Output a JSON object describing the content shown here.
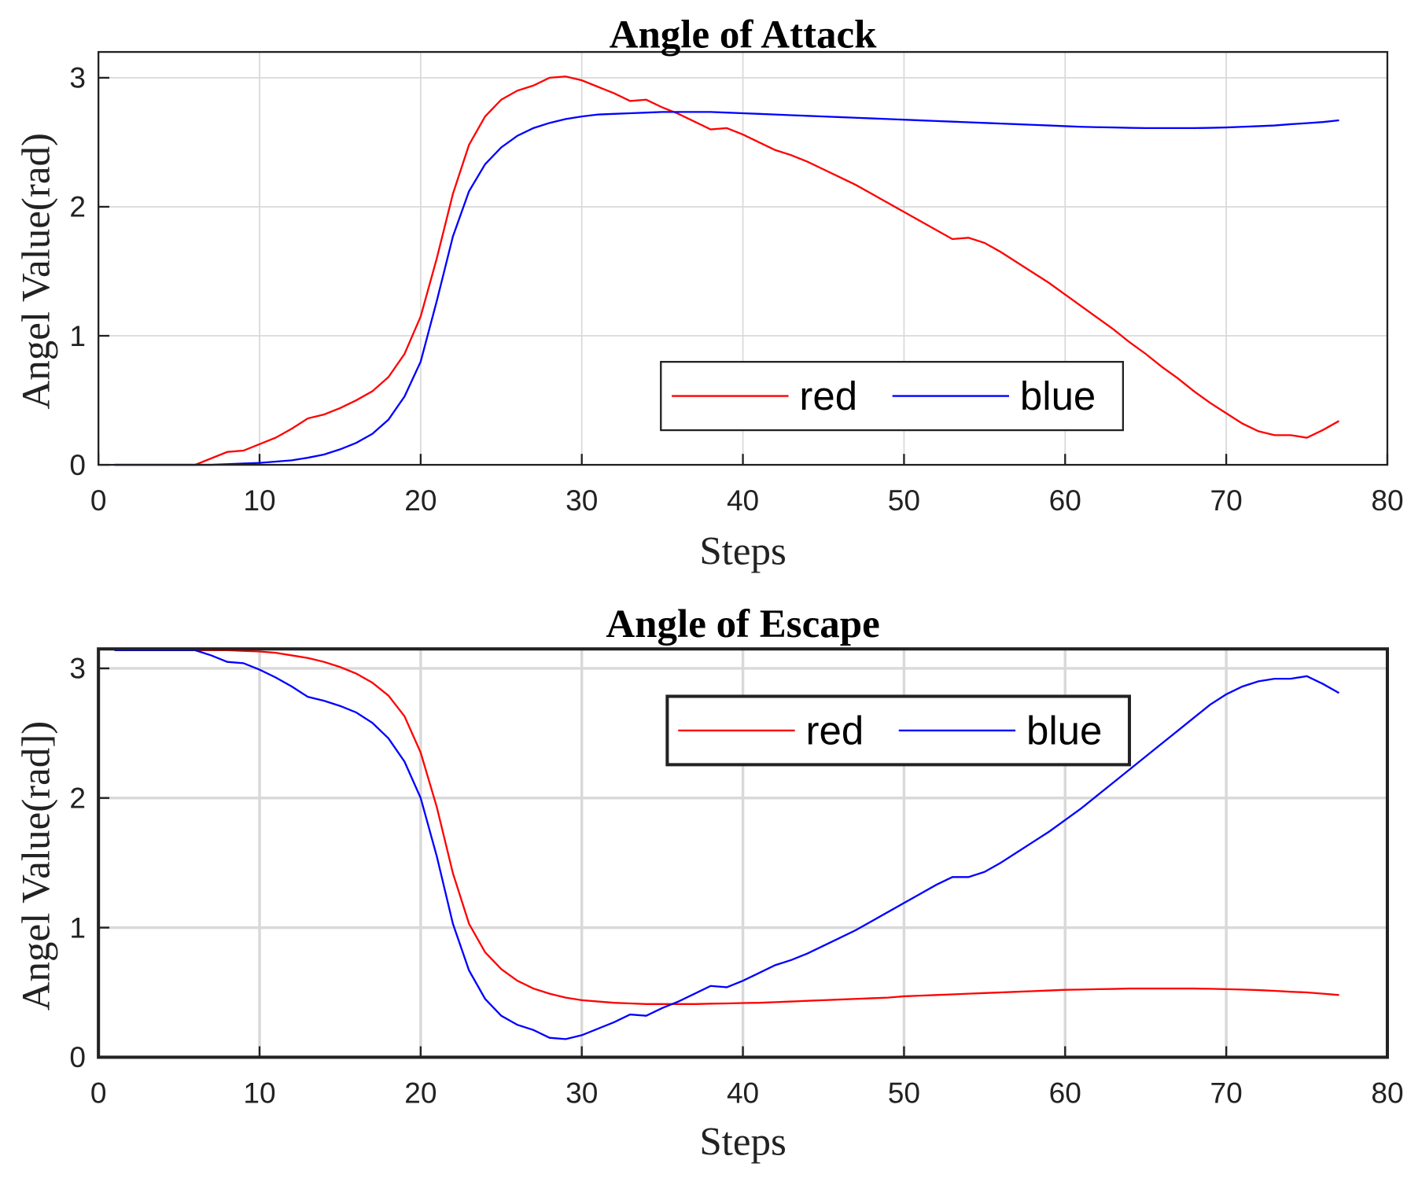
{
  "chart_data": [
    {
      "type": "line",
      "title": "Angle of Attack",
      "xlabel": "Steps",
      "ylabel": "Angel Value(rad)",
      "x": [
        1,
        2,
        3,
        4,
        5,
        6,
        7,
        8,
        9,
        10,
        11,
        12,
        13,
        14,
        15,
        16,
        17,
        18,
        19,
        20,
        21,
        22,
        23,
        24,
        25,
        26,
        27,
        28,
        29,
        30,
        31,
        32,
        33,
        34,
        35,
        36,
        37,
        38,
        39,
        40,
        41,
        42,
        43,
        44,
        45,
        46,
        47,
        48,
        49,
        50,
        51,
        52,
        53,
        54,
        55,
        56,
        57,
        58,
        59,
        60,
        61,
        62,
        63,
        64,
        65,
        66,
        67,
        68,
        69,
        70,
        71,
        72,
        73,
        74,
        75,
        76,
        77
      ],
      "series": [
        {
          "name": "red",
          "color": "#ff0000",
          "values": [
            0,
            0,
            0,
            0,
            0,
            0,
            0.05,
            0.1,
            0.11,
            0.16,
            0.21,
            0.28,
            0.36,
            0.39,
            0.44,
            0.5,
            0.57,
            0.68,
            0.86,
            1.15,
            1.6,
            2.1,
            2.48,
            2.7,
            2.83,
            2.9,
            2.94,
            3.0,
            3.01,
            2.98,
            2.93,
            2.88,
            2.82,
            2.83,
            2.77,
            2.72,
            2.66,
            2.6,
            2.61,
            2.56,
            2.5,
            2.44,
            2.4,
            2.35,
            2.29,
            2.23,
            2.17,
            2.1,
            2.03,
            1.96,
            1.89,
            1.82,
            1.75,
            1.76,
            1.72,
            1.65,
            1.57,
            1.49,
            1.41,
            1.32,
            1.23,
            1.14,
            1.05,
            0.95,
            0.86,
            0.76,
            0.67,
            0.57,
            0.48,
            0.4,
            0.32,
            0.26,
            0.23,
            0.23,
            0.21,
            0.27,
            0.34
          ]
        },
        {
          "name": "blue",
          "color": "#0000ff",
          "values": [
            0,
            0,
            0,
            0,
            0,
            0,
            0,
            0.005,
            0.01,
            0.015,
            0.025,
            0.035,
            0.055,
            0.08,
            0.12,
            0.17,
            0.24,
            0.35,
            0.53,
            0.8,
            1.27,
            1.77,
            2.12,
            2.33,
            2.46,
            2.55,
            2.61,
            2.65,
            2.68,
            2.7,
            2.715,
            2.72,
            2.725,
            2.73,
            2.735,
            2.735,
            2.735,
            2.735,
            2.73,
            2.725,
            2.72,
            2.715,
            2.71,
            2.705,
            2.7,
            2.695,
            2.69,
            2.685,
            2.68,
            2.675,
            2.67,
            2.665,
            2.66,
            2.655,
            2.65,
            2.645,
            2.64,
            2.635,
            2.63,
            2.625,
            2.62,
            2.617,
            2.615,
            2.612,
            2.61,
            2.61,
            2.61,
            2.61,
            2.612,
            2.615,
            2.62,
            2.625,
            2.63,
            2.64,
            2.648,
            2.657,
            2.67
          ]
        }
      ],
      "xlim": [
        0,
        80
      ],
      "xticks": [
        0,
        10,
        20,
        30,
        40,
        50,
        60,
        70,
        80
      ],
      "ylim": [
        0,
        3.2
      ],
      "yticks": [
        0,
        1,
        2,
        3
      ],
      "grid": true,
      "legend": true
    },
    {
      "type": "line",
      "title": "Angle of Escape",
      "xlabel": "Steps",
      "ylabel": "Angel Value(rad])",
      "x": [
        1,
        2,
        3,
        4,
        5,
        6,
        7,
        8,
        9,
        10,
        11,
        12,
        13,
        14,
        15,
        16,
        17,
        18,
        19,
        20,
        21,
        22,
        23,
        24,
        25,
        26,
        27,
        28,
        29,
        30,
        31,
        32,
        33,
        34,
        35,
        36,
        37,
        38,
        39,
        40,
        41,
        42,
        43,
        44,
        45,
        46,
        47,
        48,
        49,
        50,
        51,
        52,
        53,
        54,
        55,
        56,
        57,
        58,
        59,
        60,
        61,
        62,
        63,
        64,
        65,
        66,
        67,
        68,
        69,
        70,
        71,
        72,
        73,
        74,
        75,
        76,
        77
      ],
      "series": [
        {
          "name": "red",
          "color": "#ff0000",
          "values": [
            3.14,
            3.14,
            3.14,
            3.14,
            3.14,
            3.14,
            3.14,
            3.14,
            3.135,
            3.13,
            3.12,
            3.1,
            3.08,
            3.05,
            3.01,
            2.96,
            2.89,
            2.79,
            2.63,
            2.35,
            1.93,
            1.42,
            1.03,
            0.81,
            0.68,
            0.59,
            0.53,
            0.49,
            0.46,
            0.44,
            0.43,
            0.42,
            0.415,
            0.41,
            0.41,
            0.41,
            0.41,
            0.413,
            0.415,
            0.418,
            0.42,
            0.425,
            0.43,
            0.435,
            0.44,
            0.445,
            0.45,
            0.455,
            0.46,
            0.47,
            0.475,
            0.48,
            0.485,
            0.49,
            0.495,
            0.5,
            0.505,
            0.51,
            0.515,
            0.52,
            0.522,
            0.525,
            0.527,
            0.53,
            0.53,
            0.53,
            0.53,
            0.53,
            0.528,
            0.525,
            0.522,
            0.518,
            0.512,
            0.505,
            0.5,
            0.49,
            0.48
          ]
        },
        {
          "name": "blue",
          "color": "#0000ff",
          "values": [
            3.14,
            3.14,
            3.14,
            3.14,
            3.14,
            3.14,
            3.1,
            3.05,
            3.04,
            2.99,
            2.93,
            2.86,
            2.78,
            2.75,
            2.71,
            2.66,
            2.58,
            2.46,
            2.28,
            2.0,
            1.55,
            1.03,
            0.67,
            0.45,
            0.32,
            0.25,
            0.21,
            0.15,
            0.14,
            0.17,
            0.22,
            0.27,
            0.33,
            0.32,
            0.38,
            0.43,
            0.49,
            0.55,
            0.54,
            0.59,
            0.65,
            0.71,
            0.75,
            0.8,
            0.86,
            0.92,
            0.98,
            1.05,
            1.12,
            1.19,
            1.26,
            1.33,
            1.39,
            1.39,
            1.43,
            1.5,
            1.58,
            1.66,
            1.74,
            1.83,
            1.92,
            2.02,
            2.12,
            2.22,
            2.32,
            2.42,
            2.52,
            2.62,
            2.72,
            2.8,
            2.86,
            2.9,
            2.92,
            2.92,
            2.94,
            2.88,
            2.81
          ]
        }
      ],
      "xlim": [
        0,
        80
      ],
      "xticks": [
        0,
        10,
        20,
        30,
        40,
        50,
        60,
        70,
        80
      ],
      "ylim": [
        0,
        3.15
      ],
      "yticks": [
        0,
        1,
        2,
        3
      ],
      "grid": true,
      "legend": true
    }
  ]
}
